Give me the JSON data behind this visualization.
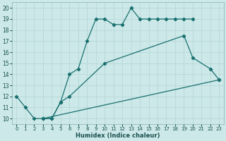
{
  "xlabel": "Humidex (Indice chaleur)",
  "bg_color": "#cce8e8",
  "grid_color": "#b8d8d8",
  "line_color": "#1a7070",
  "xlim": [
    -0.5,
    23.5
  ],
  "ylim": [
    9.5,
    20.5
  ],
  "xticks": [
    0,
    1,
    2,
    3,
    4,
    5,
    6,
    7,
    8,
    9,
    10,
    11,
    12,
    13,
    14,
    15,
    16,
    17,
    18,
    19,
    20,
    21,
    22,
    23
  ],
  "yticks": [
    10,
    11,
    12,
    13,
    14,
    15,
    16,
    17,
    18,
    19,
    20
  ],
  "line1_x": [
    0,
    1,
    2,
    3,
    4,
    5,
    6,
    7,
    8,
    9,
    10,
    11,
    12,
    13,
    14,
    15,
    16,
    17,
    18,
    19,
    20
  ],
  "line1_y": [
    12,
    11,
    10,
    10,
    10,
    11.5,
    14,
    14.5,
    17,
    19,
    19,
    18.5,
    18.5,
    20,
    19,
    19,
    19,
    19,
    19,
    19,
    19
  ],
  "line2_x": [
    3,
    4,
    5,
    6,
    10,
    19,
    20,
    22,
    23
  ],
  "line2_y": [
    10,
    10,
    11.5,
    12,
    15,
    17.5,
    15.5,
    14.5,
    13.5
  ],
  "line3_x": [
    3,
    23
  ],
  "line3_y": [
    10,
    13.5
  ]
}
